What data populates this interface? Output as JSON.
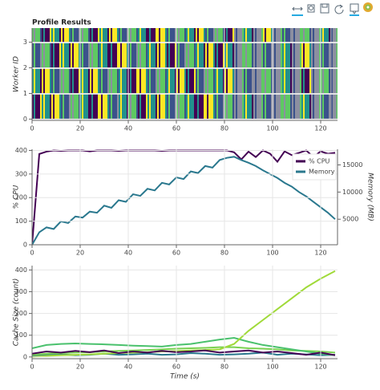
{
  "chart_data": [
    {
      "type": "heatmap",
      "title": "Profile Results",
      "y_label": "Worker ID",
      "xlim": [
        0,
        127
      ],
      "ylim": [
        -0.05,
        3.55
      ],
      "xticks": [
        0,
        20,
        40,
        60,
        80,
        100,
        120
      ],
      "yticks": [
        0,
        1,
        2,
        3
      ],
      "grid": true,
      "palette": [
        "#440154",
        "#3b528b",
        "#21918c",
        "#5ec962",
        "#fde725",
        "#8c8fa0"
      ],
      "x_edges": [
        0,
        4,
        8,
        12,
        16,
        20,
        24,
        28,
        32,
        36,
        40,
        44,
        48,
        52,
        56,
        60,
        64,
        68,
        72,
        76,
        80,
        84,
        88,
        92,
        96,
        100,
        104,
        108,
        112,
        116,
        120,
        124,
        127
      ],
      "rows": [
        {
          "worker": 0,
          "colors": [
            0,
            2,
            4,
            1,
            3,
            2,
            0,
            4,
            1,
            2,
            3,
            0,
            2,
            4,
            1,
            3,
            2,
            0,
            4,
            1,
            3,
            5,
            2,
            5,
            1,
            5,
            3,
            5,
            2,
            5,
            1,
            5
          ]
        },
        {
          "worker": 1,
          "colors": [
            2,
            4,
            1,
            3,
            0,
            2,
            4,
            1,
            3,
            2,
            0,
            4,
            1,
            3,
            2,
            4,
            0,
            1,
            3,
            2,
            4,
            5,
            1,
            5,
            3,
            5,
            2,
            5,
            0,
            5,
            3,
            5
          ]
        },
        {
          "worker": 2,
          "colors": [
            1,
            3,
            0,
            2,
            4,
            1,
            3,
            2,
            0,
            4,
            1,
            3,
            2,
            4,
            0,
            1,
            3,
            2,
            4,
            0,
            2,
            5,
            3,
            5,
            1,
            5,
            2,
            5,
            4,
            5,
            1,
            5
          ]
        },
        {
          "worker": 3,
          "colors": [
            3,
            0,
            2,
            4,
            1,
            3,
            0,
            2,
            4,
            1,
            3,
            2,
            0,
            4,
            1,
            3,
            2,
            4,
            1,
            3,
            0,
            5,
            2,
            5,
            4,
            5,
            1,
            5,
            3,
            5,
            2,
            5
          ]
        }
      ]
    },
    {
      "type": "line",
      "y_label": "% CPU",
      "y2_label": "Memory (MB)",
      "xlim": [
        0,
        127
      ],
      "ylim": [
        0,
        405
      ],
      "y2lim": [
        300,
        17880
      ],
      "xticks": [
        0,
        20,
        40,
        60,
        80,
        100,
        120
      ],
      "yticks": [
        0,
        100,
        200,
        300,
        400
      ],
      "y2ticks": [
        5000,
        10000,
        15000
      ],
      "grid": true,
      "legend": "top-right",
      "x": [
        0,
        3,
        6,
        9,
        12,
        15,
        18,
        21,
        24,
        27,
        30,
        33,
        36,
        39,
        42,
        45,
        48,
        51,
        54,
        57,
        60,
        63,
        66,
        69,
        72,
        75,
        78,
        81,
        84,
        87,
        90,
        93,
        96,
        99,
        102,
        105,
        108,
        111,
        114,
        117,
        120,
        123,
        126
      ],
      "series": [
        {
          "name": "% CPU",
          "color": "#440154",
          "values": [
            0,
            385,
            395,
            400,
            398,
            400,
            400,
            400,
            396,
            400,
            400,
            400,
            398,
            400,
            400,
            400,
            400,
            400,
            398,
            400,
            400,
            400,
            400,
            400,
            400,
            400,
            400,
            400,
            392,
            362,
            395,
            372,
            400,
            386,
            352,
            396,
            380,
            390,
            400,
            372,
            396,
            386,
            390
          ]
        },
        {
          "name": "Memory",
          "color": "#2a788e",
          "axis": "y2",
          "values": [
            300,
            2600,
            3500,
            3200,
            4600,
            4300,
            5500,
            5300,
            6400,
            6200,
            7500,
            7100,
            8500,
            8200,
            9600,
            9300,
            10600,
            10300,
            11700,
            11400,
            12700,
            12400,
            13800,
            13500,
            14800,
            14500,
            15900,
            16300,
            16500,
            15900,
            15400,
            14800,
            14000,
            13300,
            12600,
            11700,
            11000,
            10000,
            9200,
            8200,
            7200,
            6200,
            5000
          ]
        }
      ]
    },
    {
      "type": "line",
      "y_label": "Cache Size (count)",
      "x_label": "Time (s)",
      "xlim": [
        0,
        127
      ],
      "ylim": [
        -8,
        420
      ],
      "xticks": [
        0,
        20,
        40,
        60,
        80,
        100,
        120
      ],
      "yticks": [
        0,
        100,
        200,
        300,
        400
      ],
      "grid": true,
      "x": [
        0,
        6,
        12,
        18,
        24,
        30,
        36,
        42,
        48,
        54,
        60,
        66,
        72,
        78,
        84,
        90,
        96,
        102,
        108,
        114,
        120,
        126
      ],
      "series": [
        {
          "color": "#2a788e",
          "values": [
            5,
            10,
            12,
            8,
            10,
            15,
            10,
            12,
            15,
            10,
            12,
            18,
            15,
            10,
            12,
            15,
            20,
            10,
            15,
            12,
            8,
            10
          ]
        },
        {
          "color": "#7ad151",
          "values": [
            10,
            15,
            18,
            20,
            22,
            25,
            28,
            30,
            32,
            35,
            38,
            40,
            42,
            45,
            45,
            40,
            38,
            35,
            30,
            28,
            25,
            20
          ]
        },
        {
          "color": "#4ac16d",
          "values": [
            40,
            55,
            60,
            62,
            60,
            58,
            55,
            52,
            50,
            48,
            55,
            60,
            70,
            80,
            88,
            70,
            55,
            45,
            35,
            25,
            15,
            8
          ]
        },
        {
          "color": "#a0da39",
          "values": [
            0,
            5,
            8,
            10,
            12,
            15,
            18,
            20,
            22,
            25,
            27,
            30,
            32,
            35,
            60,
            120,
            170,
            220,
            270,
            320,
            360,
            395
          ]
        },
        {
          "color": "#440154",
          "values": [
            15,
            25,
            20,
            28,
            22,
            30,
            18,
            25,
            20,
            28,
            22,
            25,
            30,
            20,
            25,
            30,
            20,
            25,
            18,
            10,
            20,
            8
          ]
        }
      ]
    }
  ]
}
